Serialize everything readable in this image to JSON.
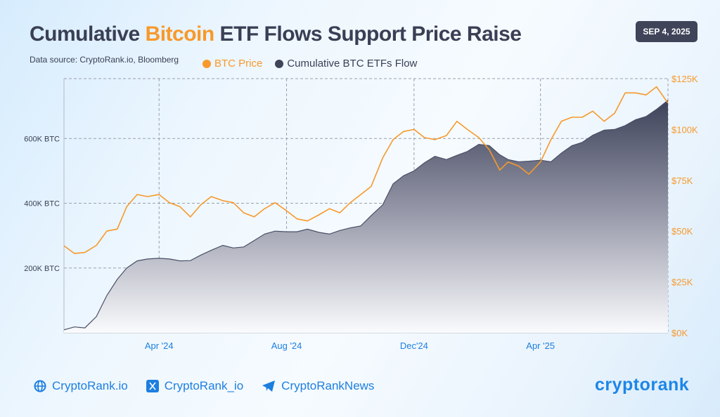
{
  "header": {
    "title_part1": "Cumulative ",
    "title_highlight": "Bitcoin",
    "title_part2": " ETF Flows Support Price Raise",
    "date_badge": "SEP 4, 2025",
    "source": "Data source: CryptoRank.io, Bloomberg"
  },
  "footer": {
    "website": "CryptoRank.io",
    "twitter": "CryptoRank_io",
    "telegram": "CryptoRankNews",
    "logo_text": "cryptorank"
  },
  "colors": {
    "price": "#f7992b",
    "flow": "#3f4459",
    "tick_left": "#3a3f55",
    "tick_right": "#f7992b",
    "tick_x": "#1d7fe0"
  },
  "chart_data": {
    "type": "line+area",
    "legend_position": "top",
    "grid": true,
    "x_range": [
      "2024-01-01",
      "2025-08-01"
    ],
    "x_ticks": [
      {
        "date": "2024-04-01",
        "label": "Apr '24"
      },
      {
        "date": "2024-08-01",
        "label": "Aug '24"
      },
      {
        "date": "2024-12-01",
        "label": "Dec'24"
      },
      {
        "date": "2025-04-01",
        "label": "Apr '25"
      }
    ],
    "y_left": {
      "unit": "K BTC",
      "range": [
        0,
        785
      ],
      "ticks": [
        {
          "value": 200,
          "label": "200K BTC"
        },
        {
          "value": 400,
          "label": "400K BTC"
        },
        {
          "value": 600,
          "label": "600K BTC"
        }
      ]
    },
    "y_right": {
      "unit": "$K",
      "range": [
        0,
        125
      ],
      "ticks": [
        {
          "value": 0,
          "label": "$0K"
        },
        {
          "value": 25,
          "label": "$25K"
        },
        {
          "value": 50,
          "label": "$50K"
        },
        {
          "value": 75,
          "label": "$75K"
        },
        {
          "value": 100,
          "label": "$100K"
        },
        {
          "value": 125,
          "label": "$125K"
        }
      ]
    },
    "dates": [
      "2024-01-01",
      "2024-01-11",
      "2024-01-21",
      "2024-02-01",
      "2024-02-11",
      "2024-02-21",
      "2024-03-01",
      "2024-03-11",
      "2024-03-21",
      "2024-04-01",
      "2024-04-11",
      "2024-04-21",
      "2024-05-01",
      "2024-05-11",
      "2024-05-21",
      "2024-06-01",
      "2024-06-11",
      "2024-06-21",
      "2024-07-01",
      "2024-07-11",
      "2024-07-21",
      "2024-08-01",
      "2024-08-11",
      "2024-08-21",
      "2024-09-01",
      "2024-09-11",
      "2024-09-21",
      "2024-10-01",
      "2024-10-11",
      "2024-10-21",
      "2024-11-01",
      "2024-11-11",
      "2024-11-21",
      "2024-12-01",
      "2024-12-11",
      "2024-12-21",
      "2025-01-01",
      "2025-01-11",
      "2025-01-21",
      "2025-02-01",
      "2025-02-11",
      "2025-02-21",
      "2025-03-01",
      "2025-03-11",
      "2025-03-21",
      "2025-04-01",
      "2025-04-11",
      "2025-04-21",
      "2025-05-01",
      "2025-05-11",
      "2025-05-21",
      "2025-06-01",
      "2025-06-11",
      "2025-06-21",
      "2025-07-01",
      "2025-07-11",
      "2025-07-21",
      "2025-08-01"
    ],
    "series": [
      {
        "name": "BTC Price",
        "axis": "right",
        "kind": "line",
        "values": [
          42.8,
          39,
          39.5,
          43,
          50,
          51,
          62,
          68,
          67,
          68,
          64,
          62,
          57,
          63,
          67,
          65,
          64,
          59,
          57,
          61,
          64,
          60,
          56,
          55,
          58,
          61,
          59,
          64,
          68,
          72,
          86,
          95,
          99,
          100,
          96,
          95,
          97,
          104,
          100,
          96,
          90,
          80,
          84,
          82,
          78,
          84,
          95,
          104,
          106,
          106,
          109,
          104,
          108,
          118,
          118,
          117,
          121,
          113
        ]
      },
      {
        "name": "Cumulative BTC ETFs Flow",
        "axis": "left",
        "kind": "area",
        "values": [
          9,
          18,
          15,
          50,
          115,
          165,
          200,
          222,
          228,
          230,
          228,
          222,
          223,
          240,
          255,
          270,
          262,
          265,
          285,
          305,
          314,
          312,
          312,
          320,
          310,
          305,
          316,
          324,
          330,
          362,
          395,
          460,
          485,
          500,
          525,
          545,
          535,
          548,
          560,
          582,
          578,
          550,
          535,
          528,
          530,
          533,
          528,
          555,
          578,
          588,
          610,
          626,
          628,
          640,
          658,
          668,
          690,
          718
        ]
      }
    ]
  }
}
